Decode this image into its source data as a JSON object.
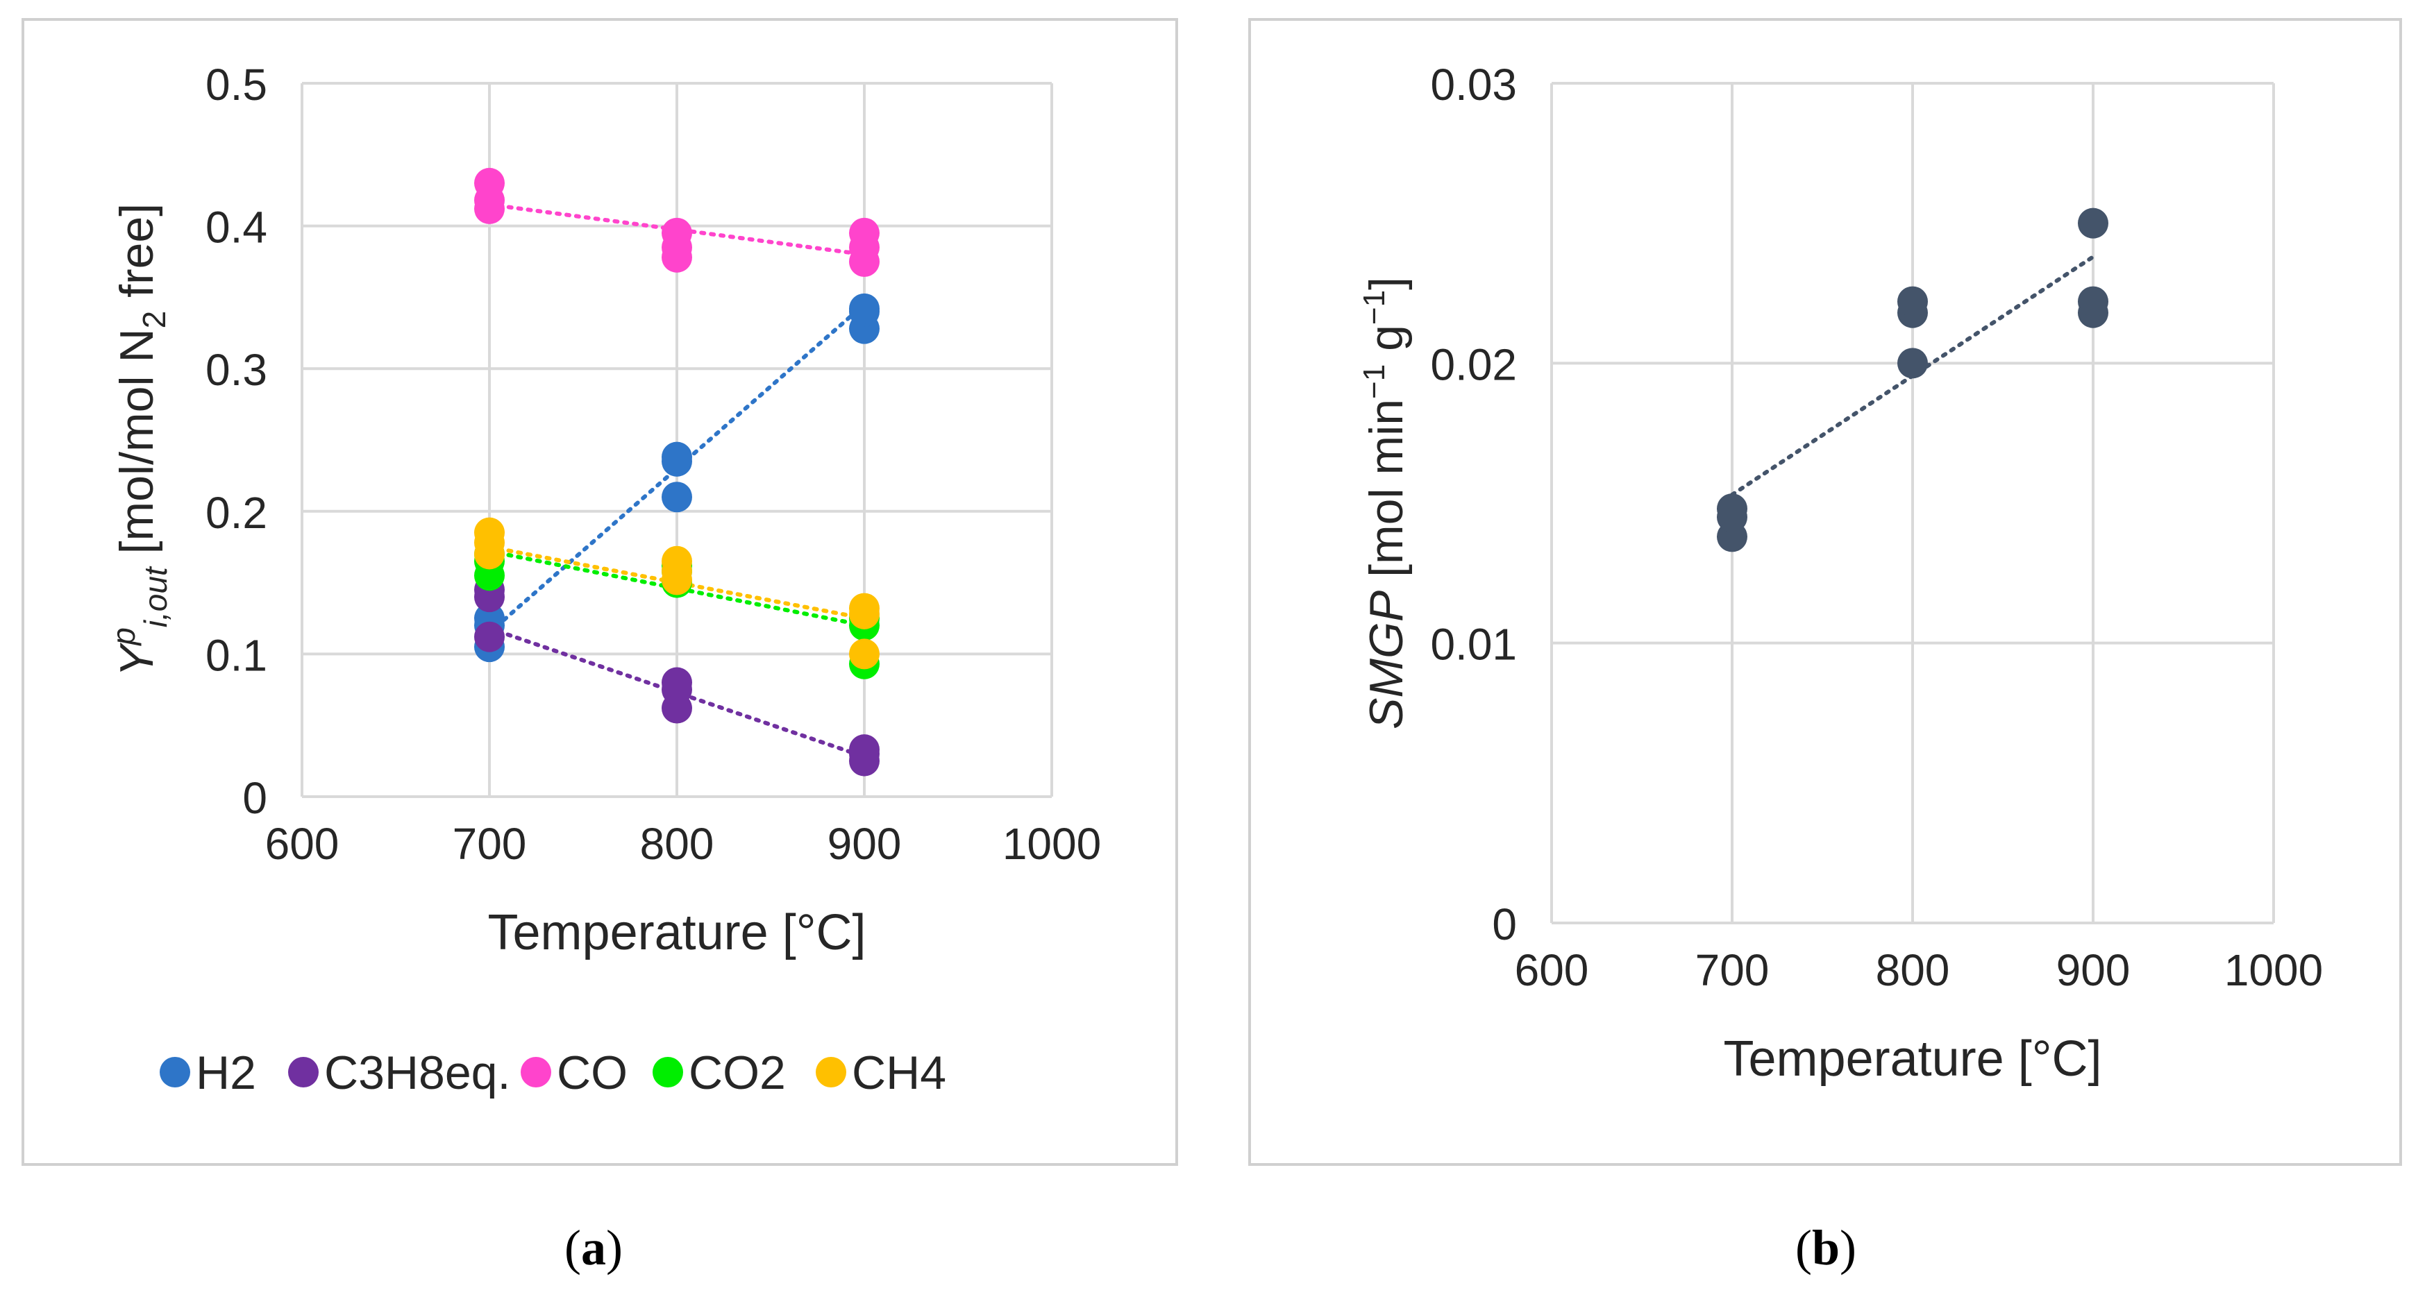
{
  "chart_data": [
    {
      "type": "scatter",
      "panel_label": "a",
      "xlabel": "Temperature [°C]",
      "ylabel": {
        "main": "Y",
        "sup": "p",
        "sub": "i,out",
        "rest_pre": " [mol/mol N",
        "rest_sub": "2",
        "rest_post": " free]"
      },
      "xlim": [
        600,
        1000
      ],
      "ylim": [
        0,
        0.5
      ],
      "xticks": [
        "600",
        "700",
        "800",
        "900",
        "1000"
      ],
      "yticks": [
        "0",
        "0.1",
        "0.2",
        "0.3",
        "0.4",
        "0.5"
      ],
      "grid": true,
      "legend": "bottom",
      "series": [
        {
          "name": "H2",
          "color": "#2e75c8",
          "points": [
            [
              700,
              0.105
            ],
            [
              700,
              0.12
            ],
            [
              700,
              0.125
            ],
            [
              800,
              0.21
            ],
            [
              800,
              0.235
            ],
            [
              800,
              0.238
            ],
            [
              900,
              0.328
            ],
            [
              900,
              0.34
            ],
            [
              900,
              0.342
            ]
          ],
          "trend": [
            [
              700,
              0.115
            ],
            [
              900,
              0.345
            ]
          ]
        },
        {
          "name": "C3H8eq.",
          "color": "#7030a0",
          "points": [
            [
              700,
              0.112
            ],
            [
              700,
              0.14
            ],
            [
              700,
              0.145
            ],
            [
              800,
              0.062
            ],
            [
              800,
              0.075
            ],
            [
              800,
              0.08
            ],
            [
              900,
              0.025
            ],
            [
              900,
              0.03
            ],
            [
              900,
              0.033
            ]
          ],
          "trend": [
            [
              700,
              0.118
            ],
            [
              900,
              0.028
            ]
          ]
        },
        {
          "name": "CO",
          "color": "#ff44cc",
          "points": [
            [
              700,
              0.412
            ],
            [
              700,
              0.418
            ],
            [
              700,
              0.43
            ],
            [
              800,
              0.378
            ],
            [
              800,
              0.385
            ],
            [
              800,
              0.395
            ],
            [
              900,
              0.375
            ],
            [
              900,
              0.385
            ],
            [
              900,
              0.395
            ]
          ],
          "trend": [
            [
              700,
              0.415
            ],
            [
              900,
              0.38
            ]
          ]
        },
        {
          "name": "CO2",
          "color": "#00ee00",
          "points": [
            [
              700,
              0.155
            ],
            [
              700,
              0.165
            ],
            [
              700,
              0.17
            ],
            [
              800,
              0.15
            ],
            [
              800,
              0.158
            ],
            [
              800,
              0.162
            ],
            [
              900,
              0.093
            ],
            [
              900,
              0.12
            ],
            [
              900,
              0.125
            ]
          ],
          "trend": [
            [
              700,
              0.172
            ],
            [
              900,
              0.12
            ]
          ]
        },
        {
          "name": "CH4",
          "color": "#ffc000",
          "points": [
            [
              700,
              0.17
            ],
            [
              700,
              0.178
            ],
            [
              700,
              0.185
            ],
            [
              800,
              0.152
            ],
            [
              800,
              0.158
            ],
            [
              800,
              0.165
            ],
            [
              900,
              0.1
            ],
            [
              900,
              0.128
            ],
            [
              900,
              0.132
            ]
          ],
          "trend": [
            [
              700,
              0.175
            ],
            [
              900,
              0.125
            ]
          ]
        }
      ]
    },
    {
      "type": "scatter",
      "panel_label": "b",
      "xlabel": "Temperature [°C]",
      "ylabel": {
        "main": "SMGP",
        "parts": [
          {
            "t": " [mol min",
            "s": null
          },
          {
            "t": "−1",
            "s": "sup"
          },
          {
            "t": " g",
            "s": null
          },
          {
            "t": "−1",
            "s": "sup"
          },
          {
            "t": "]",
            "s": null
          }
        ]
      },
      "xlim": [
        600,
        1000
      ],
      "ylim": [
        0,
        0.03
      ],
      "xticks": [
        "600",
        "700",
        "800",
        "900",
        "1000"
      ],
      "yticks": [
        "0",
        "0.01",
        "0.02",
        "0.03"
      ],
      "grid": true,
      "series": [
        {
          "name": "SMGP",
          "color": "#44546a",
          "points": [
            [
              700,
              0.0138
            ],
            [
              700,
              0.0145
            ],
            [
              700,
              0.0148
            ],
            [
              800,
              0.02
            ],
            [
              800,
              0.0218
            ],
            [
              800,
              0.0222
            ],
            [
              900,
              0.0218
            ],
            [
              900,
              0.0222
            ],
            [
              900,
              0.025
            ]
          ],
          "trend": [
            [
              700,
              0.0153
            ],
            [
              900,
              0.0238
            ]
          ]
        }
      ]
    }
  ]
}
